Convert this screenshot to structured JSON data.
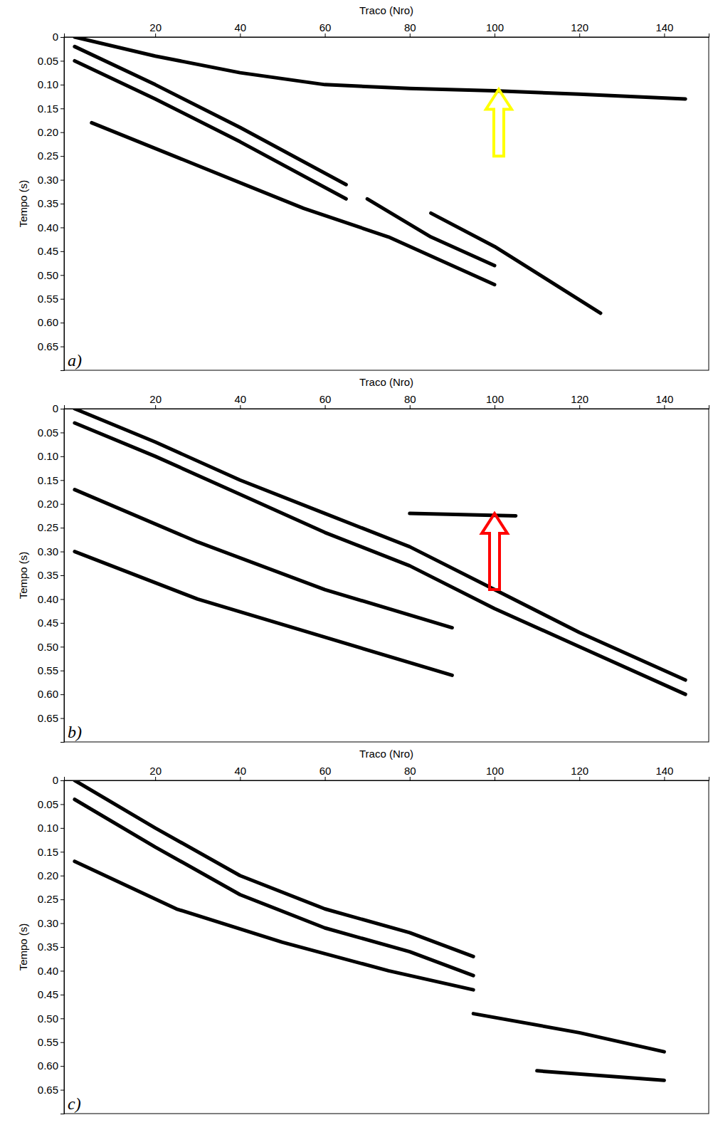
{
  "chart_data": [
    {
      "type": "line",
      "panel_label": "a)",
      "xlabel": "Traco (Nro)",
      "ylabel": "Tempo (s)",
      "xlim": [
        -1.5,
        150.5
      ],
      "xticks": [
        20,
        40,
        60,
        80,
        100,
        120,
        140
      ],
      "ylim": [
        0.7,
        0
      ],
      "yticks": [
        0,
        0.05,
        {
          "value": 0.1,
          "label": "0.10"
        },
        0.15,
        {
          "value": 0.2,
          "label": "0.20"
        },
        0.25,
        {
          "value": 0.3,
          "label": "0.30"
        },
        0.35,
        {
          "value": 0.4,
          "label": "0.40"
        },
        0.45,
        {
          "value": 0.5,
          "label": "0.50"
        },
        0.55,
        {
          "value": 0.6,
          "label": "0.60"
        },
        0.65
      ],
      "series": [
        {
          "color": "#000000",
          "x": [
            1,
            20,
            40,
            60,
            80,
            100,
            120,
            145
          ],
          "values": [
            0.0,
            0.04,
            0.075,
            0.1,
            0.108,
            0.113,
            0.12,
            0.13
          ]
        },
        {
          "color": "#000000",
          "x": [
            1,
            20,
            40,
            65
          ],
          "values": [
            0.02,
            0.1,
            0.19,
            0.31
          ]
        },
        {
          "color": "#000000",
          "x": [
            1,
            20,
            40,
            65
          ],
          "values": [
            0.05,
            0.13,
            0.22,
            0.34
          ]
        },
        {
          "color": "#000000",
          "x": [
            5,
            30,
            55,
            75,
            100
          ],
          "values": [
            0.18,
            0.27,
            0.36,
            0.42,
            0.52
          ]
        },
        {
          "color": "#000000",
          "x": [
            70,
            85,
            100
          ],
          "values": [
            0.34,
            0.42,
            0.48
          ]
        },
        {
          "color": "#000000",
          "x": [
            85,
            100,
            125
          ],
          "values": [
            0.37,
            0.44,
            0.58
          ]
        }
      ],
      "annotations": [
        {
          "x": 101,
          "y": 0.11,
          "y_end": 0.25,
          "color": "#ffff00"
        }
      ]
    },
    {
      "type": "line",
      "panel_label": "b)",
      "xlabel": "Traco (Nro)",
      "ylabel": "Tempo (s)",
      "xlim": [
        -1.5,
        150.5
      ],
      "xticks": [
        20,
        40,
        60,
        80,
        100,
        120,
        140
      ],
      "ylim": [
        0.7,
        0
      ],
      "yticks": [
        0,
        0.05,
        {
          "value": 0.1,
          "label": "0.10"
        },
        0.15,
        {
          "value": 0.2,
          "label": "0.20"
        },
        0.25,
        {
          "value": 0.3,
          "label": "0.30"
        },
        0.35,
        {
          "value": 0.4,
          "label": "0.40"
        },
        0.45,
        {
          "value": 0.5,
          "label": "0.50"
        },
        0.55,
        {
          "value": 0.6,
          "label": "0.60"
        },
        0.65
      ],
      "series": [
        {
          "color": "#000000",
          "x": [
            1,
            20,
            40,
            60,
            80,
            100,
            120,
            145
          ],
          "values": [
            0.0,
            0.07,
            0.15,
            0.22,
            0.29,
            0.38,
            0.47,
            0.57
          ]
        },
        {
          "color": "#000000",
          "x": [
            1,
            20,
            40,
            60,
            80,
            100,
            120,
            145
          ],
          "values": [
            0.03,
            0.1,
            0.18,
            0.26,
            0.33,
            0.42,
            0.5,
            0.6
          ]
        },
        {
          "color": "#000000",
          "x": [
            1,
            30,
            60,
            90
          ],
          "values": [
            0.17,
            0.28,
            0.38,
            0.46
          ]
        },
        {
          "color": "#000000",
          "x": [
            1,
            30,
            60,
            90
          ],
          "values": [
            0.3,
            0.4,
            0.48,
            0.56
          ]
        },
        {
          "color": "#000000",
          "x": [
            80,
            105
          ],
          "values": [
            0.22,
            0.225
          ]
        }
      ],
      "annotations": [
        {
          "x": 100,
          "y": 0.22,
          "y_end": 0.38,
          "color": "#ff0000"
        }
      ]
    },
    {
      "type": "line",
      "panel_label": "c)",
      "xlabel": "Traco (Nro)",
      "ylabel": "Tempo (s)",
      "xlim": [
        -1.5,
        150.5
      ],
      "xticks": [
        20,
        40,
        60,
        80,
        100,
        120,
        140
      ],
      "ylim": [
        0.7,
        0
      ],
      "yticks": [
        0,
        0.05,
        {
          "value": 0.1,
          "label": "0.10"
        },
        0.15,
        {
          "value": 0.2,
          "label": "0.20"
        },
        0.25,
        {
          "value": 0.3,
          "label": "0.30"
        },
        0.35,
        {
          "value": 0.4,
          "label": "0.40"
        },
        0.45,
        {
          "value": 0.5,
          "label": "0.50"
        },
        0.55,
        {
          "value": 0.6,
          "label": "0.60"
        },
        0.65
      ],
      "series": [
        {
          "color": "#000000",
          "x": [
            1,
            20,
            40,
            60,
            80,
            95
          ],
          "values": [
            0.0,
            0.1,
            0.2,
            0.27,
            0.32,
            0.37
          ]
        },
        {
          "color": "#000000",
          "x": [
            1,
            20,
            40,
            60,
            80,
            95
          ],
          "values": [
            0.04,
            0.14,
            0.24,
            0.31,
            0.36,
            0.41
          ]
        },
        {
          "color": "#000000",
          "x": [
            1,
            25,
            50,
            75,
            95
          ],
          "values": [
            0.17,
            0.27,
            0.34,
            0.4,
            0.44
          ]
        },
        {
          "color": "#000000",
          "x": [
            95,
            120,
            140
          ],
          "values": [
            0.49,
            0.53,
            0.57
          ]
        },
        {
          "color": "#000000",
          "x": [
            110,
            140
          ],
          "values": [
            0.61,
            0.63
          ]
        }
      ],
      "annotations": []
    }
  ]
}
